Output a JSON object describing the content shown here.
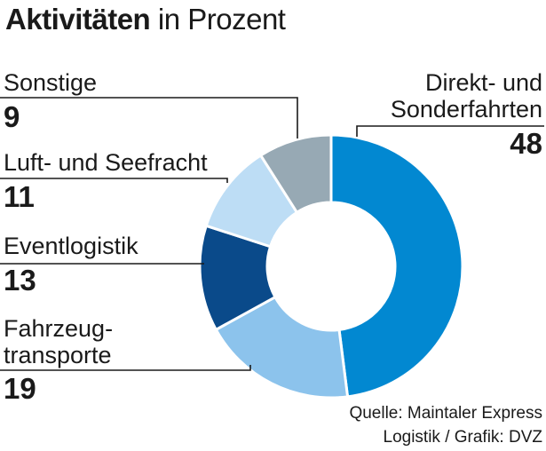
{
  "title_bold": "Aktivitäten",
  "title_rest": "in Prozent",
  "source": "Quelle: Maintaler Express\nLogistik / Grafik: DVZ",
  "chart_data": {
    "type": "pie",
    "donut": true,
    "title": "Aktivitäten in Prozent",
    "categories": [
      "Direkt- und Sonderfahrten",
      "Fahrzeug-transporte",
      "Eventlogistik",
      "Luft- und Seefracht",
      "Sonstige"
    ],
    "labels": [
      "Direkt- und\nSonderfahrten",
      "Fahrzeug-\ntransporte",
      "Eventlogistik",
      "Luft- und Seefracht",
      "Sonstige"
    ],
    "values": [
      48,
      19,
      13,
      11,
      9
    ],
    "colors": [
      "#0288d1",
      "#8cc3ec",
      "#0a4a8a",
      "#bdddf5",
      "#97a9b4"
    ]
  }
}
